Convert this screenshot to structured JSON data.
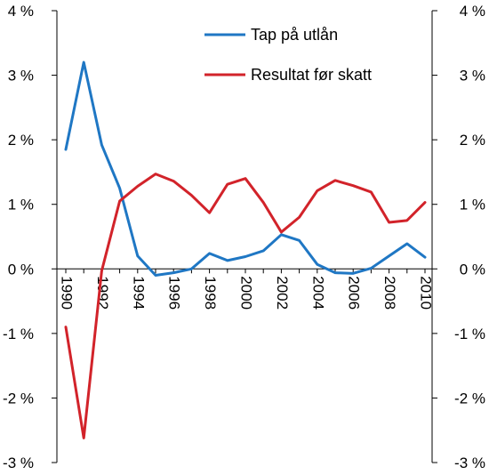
{
  "chart_data": {
    "type": "line",
    "x": [
      1990,
      1991,
      1992,
      1993,
      1994,
      1995,
      1996,
      1997,
      1998,
      1999,
      2000,
      2001,
      2002,
      2003,
      2004,
      2005,
      2006,
      2007,
      2008,
      2009,
      2010
    ],
    "series": [
      {
        "name": "Tap på utlån",
        "color": "#1f77c4",
        "values": [
          1.85,
          3.2,
          1.92,
          1.25,
          0.2,
          -0.1,
          -0.06,
          0.0,
          0.24,
          0.13,
          0.19,
          0.28,
          0.53,
          0.44,
          0.07,
          -0.06,
          -0.07,
          0.01,
          0.2,
          0.39,
          0.18
        ]
      },
      {
        "name": "Resultat før skatt",
        "color": "#d2232a",
        "values": [
          -0.9,
          -2.62,
          -0.03,
          1.05,
          1.28,
          1.47,
          1.36,
          1.14,
          0.87,
          1.31,
          1.4,
          1.03,
          0.57,
          0.8,
          1.21,
          1.37,
          1.29,
          1.19,
          0.72,
          0.75,
          1.03
        ]
      }
    ],
    "ylim": [
      -3,
      4
    ],
    "y_ticks": [
      4,
      3,
      2,
      1,
      0,
      -1,
      -2,
      -3
    ],
    "y_tick_labels": [
      "4 %",
      "3 %",
      "2 %",
      "1 %",
      "0 %",
      "-1 %",
      "-2 %",
      "-3 %"
    ],
    "x_ticks": [
      1990,
      1992,
      1994,
      1996,
      1998,
      2000,
      2002,
      2004,
      2006,
      2008,
      2010
    ],
    "x_tick_labels": [
      "1990",
      "1992",
      "1994",
      "1996",
      "1998",
      "2000",
      "2002",
      "2004",
      "2006",
      "2008",
      "2010"
    ],
    "dual_y_axis_mirrored": true,
    "grid": false,
    "legend_position": "top-right"
  }
}
